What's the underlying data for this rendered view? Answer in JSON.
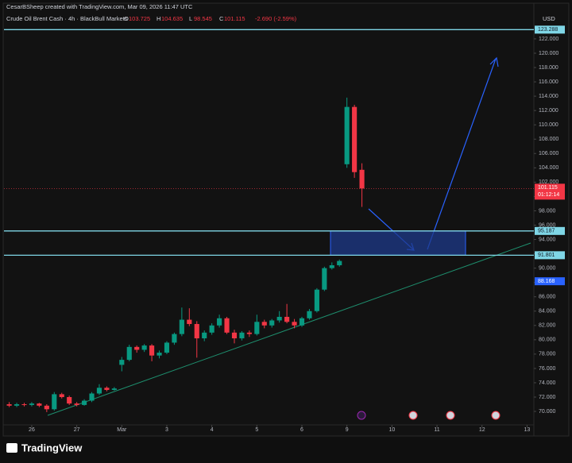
{
  "header": {
    "credit": "CesarBSheep created with TradingView.com, Mar 09, 2026 11:47 UTC",
    "symbol": "Crude Oil Brent Cash · 4h · BlackBull Markets",
    "ohlc_letters": [
      "O",
      "H",
      "L",
      "C"
    ],
    "change": "-2.690 (-2.59%)",
    "currency": "USD",
    "countdown": "01:12:14",
    "brand": "TradingView"
  },
  "chart_data": {
    "type": "candlestick",
    "up_color": "#089981",
    "down_color": "#f23645",
    "x": [
      -3,
      -2,
      -1,
      0,
      1,
      2,
      3,
      4,
      5,
      6,
      7,
      8,
      9,
      10,
      11,
      12,
      13,
      14,
      15,
      16,
      17,
      18,
      19,
      20,
      21,
      22,
      23,
      24,
      25,
      26,
      27,
      28,
      29,
      30,
      31,
      32,
      33,
      34,
      35,
      36,
      37,
      38,
      39,
      40,
      41,
      42,
      43,
      44
    ],
    "open": [
      71.0,
      70.8,
      71.0,
      70.9,
      71.1,
      70.8,
      70.3,
      72.4,
      72.0,
      71.1,
      70.9,
      71.5,
      72.5,
      73.3,
      73.0,
      76.5,
      77.2,
      79.0,
      78.6,
      79.2,
      77.8,
      78.2,
      79.6,
      80.8,
      82.8,
      82.2,
      80.2,
      81.0,
      82.0,
      83.0,
      81.0,
      80.2,
      81.0,
      80.8,
      82.5,
      82.0,
      82.7,
      83.2,
      82.5,
      82.0,
      83.0,
      84.0,
      87.0,
      90.0,
      90.4,
      104.5,
      112.5,
      103.725
    ],
    "high": [
      71.3,
      71.2,
      71.2,
      71.3,
      71.2,
      71.0,
      72.7,
      72.6,
      72.2,
      71.3,
      71.7,
      72.7,
      73.8,
      73.5,
      73.4,
      77.6,
      79.3,
      79.2,
      79.4,
      79.4,
      78.5,
      79.8,
      81.0,
      84.5,
      84.4,
      82.6,
      81.3,
      82.3,
      83.5,
      83.2,
      81.4,
      81.2,
      81.3,
      83.5,
      82.8,
      82.9,
      84.0,
      85.0,
      82.9,
      83.2,
      84.3,
      87.2,
      90.2,
      90.8,
      91.2,
      113.8,
      112.8,
      104.635
    ],
    "low": [
      70.6,
      70.6,
      70.7,
      70.7,
      70.6,
      69.9,
      70.1,
      71.8,
      70.9,
      70.7,
      70.8,
      71.3,
      72.3,
      72.8,
      72.9,
      75.6,
      77.0,
      78.2,
      78.3,
      77.0,
      77.4,
      78.0,
      79.3,
      80.5,
      81.9,
      77.5,
      79.8,
      80.7,
      81.7,
      80.8,
      79.5,
      79.9,
      80.4,
      80.6,
      81.6,
      81.7,
      82.4,
      82.3,
      81.6,
      81.8,
      82.8,
      83.8,
      86.8,
      89.8,
      90.2,
      104.0,
      102.6,
      98.545
    ],
    "close": [
      70.8,
      71.0,
      70.9,
      71.1,
      70.8,
      70.3,
      72.4,
      72.0,
      71.1,
      70.9,
      71.5,
      72.5,
      73.3,
      73.0,
      73.2,
      77.2,
      79.0,
      78.6,
      79.2,
      77.8,
      78.2,
      79.6,
      80.8,
      82.8,
      82.2,
      80.2,
      81.0,
      82.0,
      83.0,
      81.0,
      80.2,
      81.0,
      80.8,
      82.5,
      82.0,
      82.7,
      83.2,
      82.5,
      82.0,
      83.0,
      84.0,
      87.0,
      90.0,
      90.4,
      91.0,
      112.5,
      103.4,
      101.115
    ],
    "xlim": [
      -3.7,
      66.7
    ],
    "xticks": [
      {
        "value": 0,
        "label": "26"
      },
      {
        "value": 6,
        "label": "27"
      },
      {
        "value": 12,
        "label": "Mar"
      },
      {
        "value": 18,
        "label": "3"
      },
      {
        "value": 24,
        "label": "4"
      },
      {
        "value": 30,
        "label": "5"
      },
      {
        "value": 36,
        "label": "6"
      },
      {
        "value": 42,
        "label": "9"
      },
      {
        "value": 48,
        "label": "10"
      },
      {
        "value": 54,
        "label": "11"
      },
      {
        "value": 60,
        "label": "12"
      },
      {
        "value": 66,
        "label": "13"
      }
    ],
    "ylim": [
      68.12,
      124.1
    ],
    "yticks": [
      {
        "value": 70,
        "label": "70.000"
      },
      {
        "value": 72,
        "label": "72.000"
      },
      {
        "value": 74,
        "label": "74.000"
      },
      {
        "value": 76,
        "label": "76.000"
      },
      {
        "value": 78,
        "label": "78.000"
      },
      {
        "value": 80,
        "label": "80.000"
      },
      {
        "value": 82,
        "label": "82.000"
      },
      {
        "value": 84,
        "label": "84.000"
      },
      {
        "value": 86,
        "label": "86.000"
      },
      {
        "value": 88,
        "label": "88.000"
      },
      {
        "value": 90,
        "label": "90.000"
      },
      {
        "value": 92,
        "label": "92.000"
      },
      {
        "value": 94,
        "label": "94.000"
      },
      {
        "value": 96,
        "label": "96.000"
      },
      {
        "value": 98,
        "label": "98.000"
      },
      {
        "value": 100,
        "label": "100.000"
      },
      {
        "value": 102,
        "label": "102.000"
      },
      {
        "value": 104,
        "label": "104.000"
      },
      {
        "value": 106,
        "label": "106.000"
      },
      {
        "value": 108,
        "label": "108.000"
      },
      {
        "value": 110,
        "label": "110.000"
      },
      {
        "value": 112,
        "label": "112.000"
      },
      {
        "value": 114,
        "label": "114.000"
      },
      {
        "value": 116,
        "label": "116.000"
      },
      {
        "value": 118,
        "label": "118.000"
      },
      {
        "value": 120,
        "label": "120.000"
      },
      {
        "value": 122,
        "label": "122.000"
      }
    ],
    "levels": [
      123.288,
      95.187,
      91.801
    ],
    "level_color": "#7fd6e6",
    "indicator_price": 88.168,
    "indicator_color": "#2962ff"
  }
}
